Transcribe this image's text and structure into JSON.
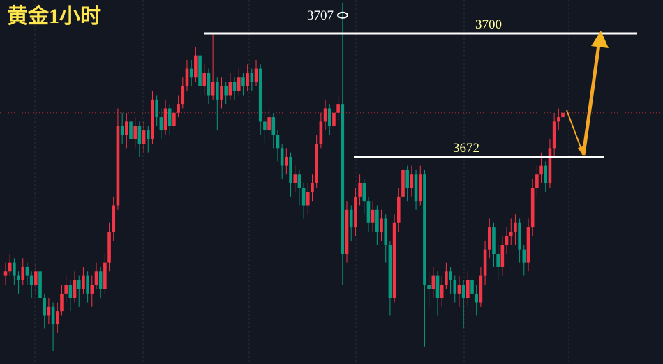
{
  "chart_data": {
    "type": "candlestick",
    "title": "黄金1小时",
    "ylim": [
      3625,
      3707.6
    ],
    "levels": [
      3700,
      3672
    ],
    "annotations": [
      3707
    ],
    "open": [
      3645,
      3646,
      3648,
      3645,
      3644,
      3647,
      3645,
      3643,
      3646,
      3640,
      3636,
      3638,
      3634,
      3637,
      3641,
      3643,
      3640,
      3644,
      3642,
      3645,
      3641,
      3643,
      3646,
      3642,
      3648,
      3655,
      3661,
      3679,
      3677,
      3680,
      3676,
      3679,
      3675,
      3678,
      3676,
      3685,
      3681,
      3678,
      3683,
      3679,
      3682,
      3684,
      3688,
      3692,
      3690,
      3695,
      3688,
      3691,
      3686,
      3689,
      3685,
      3688,
      3686,
      3689,
      3687,
      3690,
      3688,
      3691,
      3689,
      3692,
      3680,
      3678,
      3681,
      3677,
      3674,
      3670,
      3672,
      3666,
      3668,
      3665,
      3661,
      3664,
      3666,
      3675,
      3680,
      3683,
      3679,
      3682,
      3684,
      3650,
      3660,
      3656,
      3663,
      3666,
      3662,
      3657,
      3660,
      3655,
      3658,
      3652,
      3640,
      3657,
      3663,
      3669,
      3665,
      3668,
      3662,
      3668,
      3643,
      3642,
      3645,
      3640,
      3643,
      3646,
      3644,
      3641,
      3643,
      3640,
      3644,
      3641,
      3639,
      3645,
      3651,
      3656,
      3650,
      3647,
      3652,
      3654,
      3655,
      3657,
      3651,
      3648,
      3656,
      3665,
      3668,
      3670,
      3666,
      3674,
      3680,
      3681
    ],
    "high": [
      3648,
      3650,
      3649,
      3646,
      3649,
      3648,
      3646,
      3648,
      3647,
      3641,
      3640,
      3639,
      3639,
      3643,
      3645,
      3644,
      3646,
      3645,
      3647,
      3646,
      3645,
      3648,
      3647,
      3650,
      3657,
      3663,
      3683,
      3682,
      3682,
      3681,
      3681,
      3680,
      3680,
      3679,
      3687,
      3686,
      3683,
      3685,
      3684,
      3684,
      3686,
      3690,
      3694,
      3694,
      3697,
      3696,
      3693,
      3692,
      3700,
      3690,
      3690,
      3689,
      3691,
      3690,
      3692,
      3691,
      3693,
      3692,
      3694,
      3693,
      3682,
      3683,
      3682,
      3678,
      3675,
      3674,
      3673,
      3670,
      3669,
      3666,
      3666,
      3668,
      3677,
      3682,
      3685,
      3684,
      3684,
      3686,
      3707,
      3662,
      3661,
      3665,
      3668,
      3667,
      3663,
      3662,
      3661,
      3660,
      3659,
      3653,
      3659,
      3665,
      3671,
      3670,
      3670,
      3669,
      3670,
      3669,
      3646,
      3647,
      3646,
      3645,
      3648,
      3647,
      3645,
      3645,
      3644,
      3646,
      3645,
      3643,
      3647,
      3653,
      3658,
      3657,
      3652,
      3654,
      3656,
      3658,
      3659,
      3658,
      3652,
      3658,
      3667,
      3670,
      3673,
      3671,
      3676,
      3682,
      3683,
      3683
    ],
    "low": [
      3643,
      3645,
      3643,
      3641,
      3643,
      3643,
      3640,
      3641,
      3638,
      3633,
      3634,
      3628,
      3632,
      3636,
      3639,
      3637,
      3639,
      3638,
      3641,
      3639,
      3638,
      3642,
      3640,
      3641,
      3646,
      3653,
      3660,
      3675,
      3674,
      3673,
      3674,
      3672,
      3673,
      3673,
      3675,
      3679,
      3676,
      3677,
      3677,
      3678,
      3681,
      3683,
      3687,
      3688,
      3689,
      3686,
      3686,
      3684,
      3685,
      3678,
      3683,
      3684,
      3685,
      3685,
      3686,
      3686,
      3687,
      3687,
      3688,
      3677,
      3675,
      3676,
      3674,
      3671,
      3667,
      3668,
      3663,
      3664,
      3661,
      3658,
      3659,
      3662,
      3665,
      3674,
      3678,
      3677,
      3678,
      3680,
      3643,
      3648,
      3653,
      3654,
      3661,
      3659,
      3655,
      3655,
      3652,
      3653,
      3648,
      3636,
      3639,
      3655,
      3662,
      3662,
      3663,
      3660,
      3661,
      3629,
      3638,
      3640,
      3636,
      3638,
      3642,
      3641,
      3639,
      3638,
      3633,
      3638,
      3638,
      3636,
      3638,
      3643,
      3649,
      3647,
      3644,
      3645,
      3650,
      3652,
      3652,
      3648,
      3645,
      3646,
      3654,
      3663,
      3666,
      3664,
      3665,
      3672,
      3678,
      3679
    ],
    "close": [
      3646,
      3648,
      3645,
      3644,
      3647,
      3645,
      3643,
      3646,
      3640,
      3636,
      3638,
      3634,
      3637,
      3641,
      3643,
      3640,
      3644,
      3642,
      3645,
      3641,
      3643,
      3646,
      3642,
      3648,
      3655,
      3661,
      3679,
      3677,
      3680,
      3676,
      3679,
      3675,
      3678,
      3676,
      3685,
      3681,
      3678,
      3683,
      3679,
      3682,
      3684,
      3688,
      3692,
      3690,
      3695,
      3688,
      3691,
      3686,
      3689,
      3685,
      3688,
      3686,
      3689,
      3687,
      3690,
      3688,
      3691,
      3689,
      3692,
      3680,
      3678,
      3681,
      3677,
      3674,
      3670,
      3672,
      3666,
      3668,
      3665,
      3661,
      3664,
      3666,
      3675,
      3680,
      3683,
      3679,
      3682,
      3684,
      3650,
      3660,
      3656,
      3663,
      3666,
      3662,
      3657,
      3660,
      3655,
      3658,
      3652,
      3640,
      3657,
      3663,
      3669,
      3665,
      3668,
      3662,
      3668,
      3643,
      3642,
      3645,
      3640,
      3643,
      3646,
      3644,
      3641,
      3643,
      3640,
      3644,
      3641,
      3639,
      3645,
      3651,
      3656,
      3650,
      3647,
      3652,
      3654,
      3655,
      3657,
      3651,
      3648,
      3656,
      3665,
      3668,
      3670,
      3666,
      3674,
      3680,
      3681,
      3682
    ]
  }
}
